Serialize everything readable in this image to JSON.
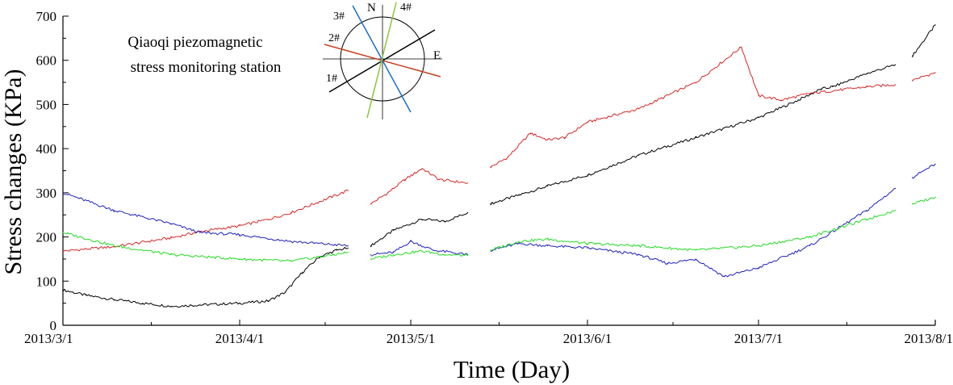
{
  "chart_data": {
    "type": "line",
    "title": "",
    "annotation": [
      "Qiaoqi piezomagnetic",
      "stress monitoring station"
    ],
    "xlabel": "Time (Day)",
    "ylabel": "Stress changes (KPa)",
    "ylim": [
      0,
      700
    ],
    "yticks": [
      "0",
      "100",
      "200",
      "300",
      "400",
      "500",
      "600",
      "700"
    ],
    "xlim": [
      "2013/3/1",
      "2013/8/1"
    ],
    "xticks": [
      "2013/3/1",
      "2013/4/1",
      "2013/5/1",
      "2013/6/1",
      "2013/7/1",
      "2013/8/1"
    ],
    "grid": false,
    "inset_compass": {
      "north_label": "N",
      "east_label": "E",
      "probe_labels": [
        "1#",
        "2#",
        "3#",
        "4#"
      ],
      "probe_colors": [
        "#000000",
        "#c8401e",
        "#1a6fc8",
        "#8cc43a"
      ]
    },
    "series": [
      {
        "color": "#000000",
        "gaps": [
          [
            "2013/4/20",
            "2013/4/24"
          ],
          [
            "2013/5/11",
            "2013/5/15"
          ],
          [
            "2013/7/25",
            "2013/7/28"
          ]
        ],
        "x": [
          "2013/3/1",
          "2013/3/5",
          "2013/3/10",
          "2013/3/15",
          "2013/3/20",
          "2013/3/25",
          "2013/4/1",
          "2013/4/6",
          "2013/4/9",
          "2013/4/12",
          "2013/4/15",
          "2013/4/18",
          "2013/4/20",
          "2013/4/24",
          "2013/4/28",
          "2013/5/3",
          "2013/5/7",
          "2013/5/11",
          "2013/5/15",
          "2013/5/20",
          "2013/5/25",
          "2013/6/1",
          "2013/6/10",
          "2013/6/20",
          "2013/7/1",
          "2013/7/8",
          "2013/7/12",
          "2013/7/14",
          "2013/7/20",
          "2013/7/25",
          "2013/7/28",
          "2013/8/1"
        ],
        "y": [
          80,
          68,
          58,
          50,
          43,
          46,
          50,
          55,
          75,
          120,
          155,
          170,
          175,
          180,
          215,
          240,
          235,
          255,
          275,
          295,
          315,
          340,
          385,
          425,
          470,
          510,
          535,
          540,
          570,
          590,
          610,
          680
        ]
      },
      {
        "color": "#d62728",
        "gaps": [
          [
            "2013/4/20",
            "2013/4/24"
          ],
          [
            "2013/5/11",
            "2013/5/15"
          ],
          [
            "2013/7/25",
            "2013/7/28"
          ]
        ],
        "x": [
          "2013/3/1",
          "2013/3/10",
          "2013/3/20",
          "2013/3/25",
          "2013/4/1",
          "2013/4/6",
          "2013/4/10",
          "2013/4/15",
          "2013/4/20",
          "2013/4/24",
          "2013/4/27",
          "2013/4/30",
          "2013/5/3",
          "2013/5/6",
          "2013/5/11",
          "2013/5/15",
          "2013/5/18",
          "2013/5/22",
          "2013/5/25",
          "2013/5/28",
          "2013/6/1",
          "2013/6/10",
          "2013/6/20",
          "2013/6/28",
          "2013/7/1",
          "2013/7/5",
          "2013/7/10",
          "2013/7/20",
          "2013/7/25",
          "2013/7/28",
          "2013/8/1"
        ],
        "y": [
          168,
          178,
          198,
          212,
          225,
          240,
          255,
          280,
          305,
          275,
          300,
          330,
          355,
          330,
          322,
          358,
          380,
          435,
          420,
          425,
          460,
          490,
          550,
          630,
          520,
          510,
          525,
          540,
          545,
          555,
          572
        ]
      },
      {
        "color": "#1f1fbf",
        "gaps": [
          [
            "2013/4/20",
            "2013/4/24"
          ],
          [
            "2013/5/11",
            "2013/5/15"
          ],
          [
            "2013/7/25",
            "2013/7/28"
          ]
        ],
        "x": [
          "2013/3/1",
          "2013/3/10",
          "2013/3/20",
          "2013/3/25",
          "2013/4/1",
          "2013/4/10",
          "2013/4/20",
          "2013/4/24",
          "2013/4/28",
          "2013/5/1",
          "2013/5/5",
          "2013/5/11",
          "2013/5/15",
          "2013/5/20",
          "2013/5/25",
          "2013/6/1",
          "2013/6/10",
          "2013/6/15",
          "2013/6/20",
          "2013/6/25",
          "2013/7/1",
          "2013/7/10",
          "2013/7/20",
          "2013/7/25",
          "2013/7/28",
          "2013/8/1"
        ],
        "y": [
          300,
          260,
          230,
          210,
          205,
          190,
          180,
          160,
          165,
          190,
          170,
          160,
          170,
          185,
          180,
          175,
          160,
          140,
          150,
          110,
          130,
          180,
          260,
          310,
          335,
          365
        ]
      },
      {
        "color": "#22dd22",
        "gaps": [
          [
            "2013/4/20",
            "2013/4/24"
          ],
          [
            "2013/5/11",
            "2013/5/15"
          ],
          [
            "2013/7/25",
            "2013/7/28"
          ]
        ],
        "x": [
          "2013/3/1",
          "2013/3/10",
          "2013/3/20",
          "2013/4/1",
          "2013/4/10",
          "2013/4/20",
          "2013/4/24",
          "2013/4/28",
          "2013/5/3",
          "2013/5/7",
          "2013/5/11",
          "2013/5/15",
          "2013/5/20",
          "2013/5/25",
          "2013/6/1",
          "2013/6/10",
          "2013/6/20",
          "2013/7/1",
          "2013/7/10",
          "2013/7/20",
          "2013/7/25",
          "2013/7/28",
          "2013/8/1"
        ],
        "y": [
          210,
          180,
          160,
          150,
          145,
          165,
          150,
          160,
          168,
          160,
          158,
          170,
          190,
          195,
          185,
          180,
          170,
          180,
          200,
          240,
          260,
          275,
          290
        ]
      }
    ]
  }
}
